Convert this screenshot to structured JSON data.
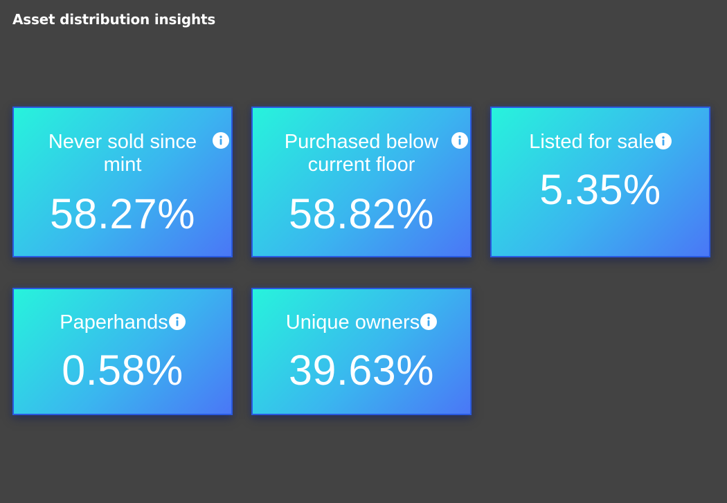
{
  "page": {
    "title": "Asset distribution insights"
  },
  "cards": [
    {
      "label": "Never sold since mint",
      "value": "58.27%",
      "icon": "info-icon"
    },
    {
      "label": "Purchased below current floor",
      "value": "58.82%",
      "icon": "info-icon"
    },
    {
      "label": "Listed for sale",
      "value": "5.35%",
      "icon": "info-icon"
    },
    {
      "label": "Paperhands",
      "value": "0.58%",
      "icon": "info-icon"
    },
    {
      "label": "Unique owners",
      "value": "39.63%",
      "icon": "info-icon"
    }
  ],
  "colors": {
    "background": "#434343",
    "card_gradient_start": "#27f3dc",
    "card_gradient_end": "#4a77f6",
    "card_border": "#2a5ae0",
    "text": "#ffffff"
  }
}
